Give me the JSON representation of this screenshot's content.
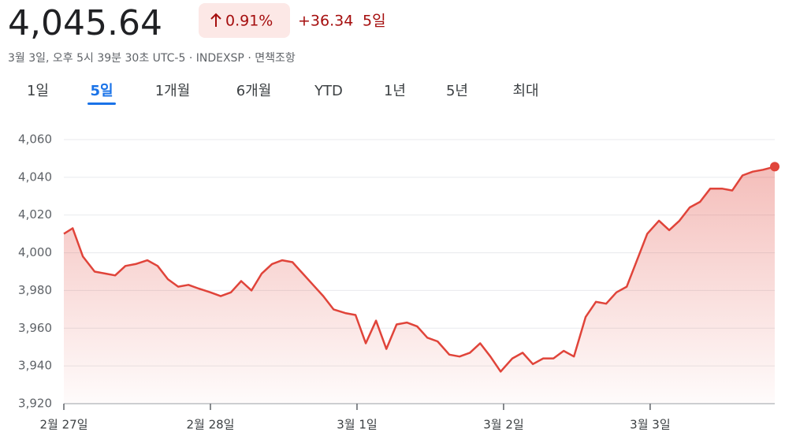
{
  "header": {
    "price": "4,045.64",
    "change_pct": "0.91%",
    "change": "+36.34",
    "period": "5일",
    "meta": "3월 3일, 오후 5시 39분 30초 UTC-5 · INDEXSP · 면책조항"
  },
  "tabs": {
    "items": [
      "1일",
      "5일",
      "1개월",
      "6개월",
      "YTD",
      "1년",
      "5년",
      "최대"
    ],
    "selected": 1
  },
  "chart_data": {
    "type": "line",
    "color": "#e0443a",
    "grid": true,
    "x": [
      0,
      0.06,
      0.13,
      0.21,
      0.28,
      0.35,
      0.42,
      0.49,
      0.57,
      0.64,
      0.71,
      0.78,
      0.85,
      0.92,
      1.0,
      1.07,
      1.14,
      1.21,
      1.28,
      1.35,
      1.42,
      1.49,
      1.56,
      1.63,
      1.7,
      1.77,
      1.84,
      1.92,
      1.99,
      2.06,
      2.13,
      2.2,
      2.27,
      2.34,
      2.41,
      2.48,
      2.55,
      2.63,
      2.7,
      2.77,
      2.84,
      2.91,
      2.98,
      3.06,
      3.13,
      3.2,
      3.27,
      3.34,
      3.41,
      3.48,
      3.56,
      3.63,
      3.7,
      3.77,
      3.84,
      3.91,
      3.98,
      4.06,
      4.13,
      4.2,
      4.27,
      4.34,
      4.41,
      4.49,
      4.56,
      4.63,
      4.7,
      4.77,
      4.85
    ],
    "values": [
      4010,
      4013,
      3998,
      3990,
      3989,
      3988,
      3993,
      3994,
      3996,
      3993,
      3986,
      3982,
      3983,
      3981,
      3979,
      3977,
      3979,
      3985,
      3980,
      3989,
      3994,
      3996,
      3995,
      3989,
      3983,
      3977,
      3970,
      3968,
      3967,
      3952,
      3964,
      3949,
      3962,
      3963,
      3961,
      3955,
      3953,
      3946,
      3945,
      3947,
      3952,
      3945,
      3937,
      3944,
      3947,
      3941,
      3944,
      3944,
      3948,
      3945,
      3966,
      3974,
      3973,
      3979,
      3982,
      3996,
      4010,
      4017,
      4012,
      4017,
      4024,
      4027,
      4034,
      4034,
      4033,
      4041,
      4043,
      4044,
      4045.64
    ],
    "xlim": [
      0,
      4.85
    ],
    "xticks": [
      {
        "value": 0,
        "label": "2월 27일"
      },
      {
        "value": 1,
        "label": "2월 28일"
      },
      {
        "value": 2,
        "label": "3월 1일"
      },
      {
        "value": 3,
        "label": "3월 2일"
      },
      {
        "value": 4,
        "label": "3월 3일"
      }
    ],
    "ylim": [
      3920,
      4060
    ],
    "yticks": [
      {
        "value": 3920,
        "label": "3,920"
      },
      {
        "value": 3940,
        "label": "3,940"
      },
      {
        "value": 3960,
        "label": "3,960"
      },
      {
        "value": 3980,
        "label": "3,980"
      },
      {
        "value": 4000,
        "label": "4,000"
      },
      {
        "value": 4020,
        "label": "4,020"
      },
      {
        "value": 4040,
        "label": "4,040"
      },
      {
        "value": 4060,
        "label": "4,060"
      }
    ]
  }
}
